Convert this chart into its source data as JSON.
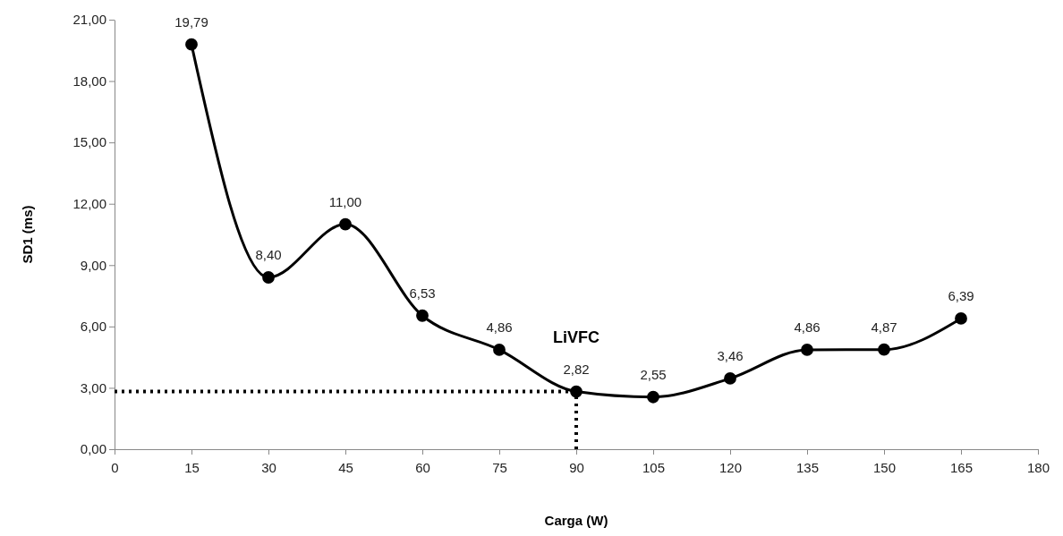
{
  "chart_data": {
    "type": "line",
    "xlabel": "Carga (W)",
    "ylabel": "SD1 (ms)",
    "x": [
      15,
      30,
      45,
      60,
      75,
      90,
      105,
      120,
      135,
      150,
      165
    ],
    "series": [
      {
        "color": "#000000",
        "values": [
          19.79,
          8.4,
          11.0,
          6.53,
          4.86,
          2.82,
          2.55,
          3.46,
          4.86,
          4.87,
          6.39
        ],
        "value_labels": [
          "19,79",
          "8,40",
          "11,00",
          "6,53",
          "4,86",
          "2,82",
          "2,55",
          "3,46",
          "4,86",
          "4,87",
          "6,39"
        ]
      }
    ],
    "xlim": [
      0,
      180
    ],
    "xticks": [
      0,
      15,
      30,
      45,
      60,
      75,
      90,
      105,
      120,
      135,
      150,
      165,
      180
    ],
    "ylim": [
      0,
      21
    ],
    "yticks": [
      {
        "value": 0,
        "label": "0,00"
      },
      {
        "value": 3,
        "label": "3,00"
      },
      {
        "value": 6,
        "label": "6,00"
      },
      {
        "value": 9,
        "label": "9,00"
      },
      {
        "value": 12,
        "label": "12,00"
      },
      {
        "value": 15,
        "label": "15,00"
      },
      {
        "value": 18,
        "label": "18,00"
      },
      {
        "value": 21,
        "label": "21,00"
      }
    ],
    "ref_lines": [
      {
        "axis": "y",
        "value": 2.82,
        "line_style": "dotted"
      },
      {
        "axis": "x",
        "value": 90,
        "line_style": "dotted"
      }
    ],
    "annotations": [
      {
        "text": "LiVFC",
        "x": 90,
        "y": 2.82
      }
    ],
    "grid": false,
    "marker": "circle",
    "line_style": "solid"
  }
}
